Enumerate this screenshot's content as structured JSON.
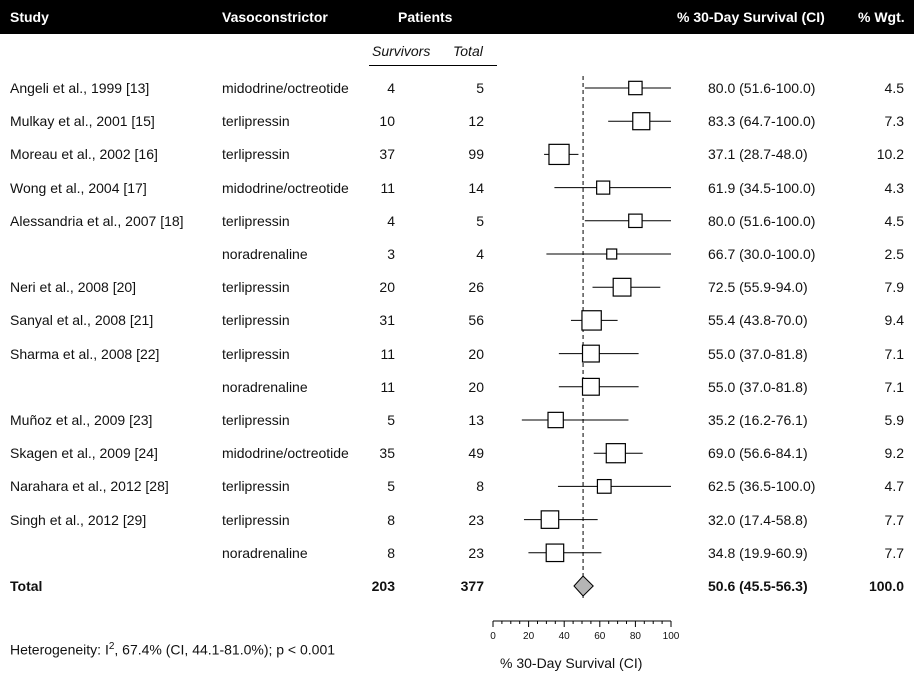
{
  "header": {
    "study": "Study",
    "vasoconstrictor": "Vasoconstrictor",
    "patients": "Patients",
    "survival": "% 30-Day Survival (CI)",
    "weight": "% Wgt."
  },
  "subheader": {
    "survivors": "Survivors",
    "total": "Total"
  },
  "rows": [
    {
      "study": "Angeli et al., 1999 [13]",
      "drug": "midodrine/octreotide",
      "survivors": "4",
      "total": "5",
      "ci": "80.0 (51.6-100.0)",
      "wgt": "4.5"
    },
    {
      "study": "Mulkay et al., 2001 [15]",
      "drug": "terlipressin",
      "survivors": "10",
      "total": "12",
      "ci": "83.3 (64.7-100.0)",
      "wgt": "7.3"
    },
    {
      "study": "Moreau et al., 2002 [16]",
      "drug": "terlipressin",
      "survivors": "37",
      "total": "99",
      "ci": "37.1 (28.7-48.0)",
      "wgt": "10.2"
    },
    {
      "study": "Wong et al., 2004 [17]",
      "drug": "midodrine/octreotide",
      "survivors": "11",
      "total": "14",
      "ci": "61.9 (34.5-100.0)",
      "wgt": "4.3"
    },
    {
      "study": "Alessandria et al., 2007 [18]",
      "drug": "terlipressin",
      "survivors": "4",
      "total": "5",
      "ci": "80.0 (51.6-100.0)",
      "wgt": "4.5"
    },
    {
      "study": "",
      "drug": "noradrenaline",
      "survivors": "3",
      "total": "4",
      "ci": "66.7 (30.0-100.0)",
      "wgt": "2.5"
    },
    {
      "study": "Neri et al., 2008 [20]",
      "drug": "terlipressin",
      "survivors": "20",
      "total": "26",
      "ci": "72.5 (55.9-94.0)",
      "wgt": "7.9"
    },
    {
      "study": "Sanyal et al., 2008 [21]",
      "drug": "terlipressin",
      "survivors": "31",
      "total": "56",
      "ci": "55.4 (43.8-70.0)",
      "wgt": "9.4"
    },
    {
      "study": "Sharma et al., 2008 [22]",
      "drug": "terlipressin",
      "survivors": "11",
      "total": "20",
      "ci": "55.0 (37.0-81.8)",
      "wgt": "7.1"
    },
    {
      "study": "",
      "drug": "noradrenaline",
      "survivors": "11",
      "total": "20",
      "ci": "55.0 (37.0-81.8)",
      "wgt": "7.1"
    },
    {
      "study": "Muñoz et al., 2009 [23]",
      "drug": "terlipressin",
      "survivors": "5",
      "total": "13",
      "ci": "35.2 (16.2-76.1)",
      "wgt": "5.9"
    },
    {
      "study": "Skagen et al., 2009 [24]",
      "drug": "midodrine/octreotide",
      "survivors": "35",
      "total": "49",
      "ci": "69.0 (56.6-84.1)",
      "wgt": "9.2"
    },
    {
      "study": "Narahara et al., 2012 [28]",
      "drug": "terlipressin",
      "survivors": "5",
      "total": "8",
      "ci": "62.5 (36.5-100.0)",
      "wgt": "4.7"
    },
    {
      "study": "Singh et al., 2012 [29]",
      "drug": "terlipressin",
      "survivors": "8",
      "total": "23",
      "ci": "32.0 (17.4-58.8)",
      "wgt": "7.7"
    },
    {
      "study": "",
      "drug": "noradrenaline",
      "survivors": "8",
      "total": "23",
      "ci": "34.8 (19.9-60.9)",
      "wgt": "7.7"
    }
  ],
  "total_row": {
    "label": "Total",
    "survivors": "203",
    "total": "377",
    "ci": "50.6 (45.5-56.3)",
    "wgt": "100.0"
  },
  "footer": {
    "heterogeneity_prefix": "Heterogeneity: I",
    "heterogeneity_sup": "2",
    "heterogeneity_rest": ", 67.4% (CI, 44.1-81.0%); p < 0.001"
  },
  "chart_data": {
    "type": "forest",
    "xlabel": "% 30-Day Survival (CI)",
    "xlim": [
      0,
      100
    ],
    "major_ticks": [
      0,
      20,
      40,
      60,
      80,
      100
    ],
    "minor_step": 5,
    "reference_line": 50.6,
    "points": [
      {
        "est": 80.0,
        "lo": 51.6,
        "hi": 100.0,
        "wgt": 4.5
      },
      {
        "est": 83.3,
        "lo": 64.7,
        "hi": 100.0,
        "wgt": 7.3
      },
      {
        "est": 37.1,
        "lo": 28.7,
        "hi": 48.0,
        "wgt": 10.2
      },
      {
        "est": 61.9,
        "lo": 34.5,
        "hi": 100.0,
        "wgt": 4.3
      },
      {
        "est": 80.0,
        "lo": 51.6,
        "hi": 100.0,
        "wgt": 4.5
      },
      {
        "est": 66.7,
        "lo": 30.0,
        "hi": 100.0,
        "wgt": 2.5
      },
      {
        "est": 72.5,
        "lo": 55.9,
        "hi": 94.0,
        "wgt": 7.9
      },
      {
        "est": 55.4,
        "lo": 43.8,
        "hi": 70.0,
        "wgt": 9.4
      },
      {
        "est": 55.0,
        "lo": 37.0,
        "hi": 81.8,
        "wgt": 7.1
      },
      {
        "est": 55.0,
        "lo": 37.0,
        "hi": 81.8,
        "wgt": 7.1
      },
      {
        "est": 35.2,
        "lo": 16.2,
        "hi": 76.1,
        "wgt": 5.9
      },
      {
        "est": 69.0,
        "lo": 56.6,
        "hi": 84.1,
        "wgt": 9.2
      },
      {
        "est": 62.5,
        "lo": 36.5,
        "hi": 100.0,
        "wgt": 4.7
      },
      {
        "est": 32.0,
        "lo": 17.4,
        "hi": 58.8,
        "wgt": 7.7
      },
      {
        "est": 34.8,
        "lo": 19.9,
        "hi": 60.9,
        "wgt": 7.7
      }
    ],
    "pooled": {
      "est": 50.6,
      "lo": 45.5,
      "hi": 56.3
    },
    "colors": {
      "line": "#000000",
      "box_fill": "#ffffff",
      "diamond_fill": "#b5b5b5",
      "header_bg": "#000000"
    }
  }
}
